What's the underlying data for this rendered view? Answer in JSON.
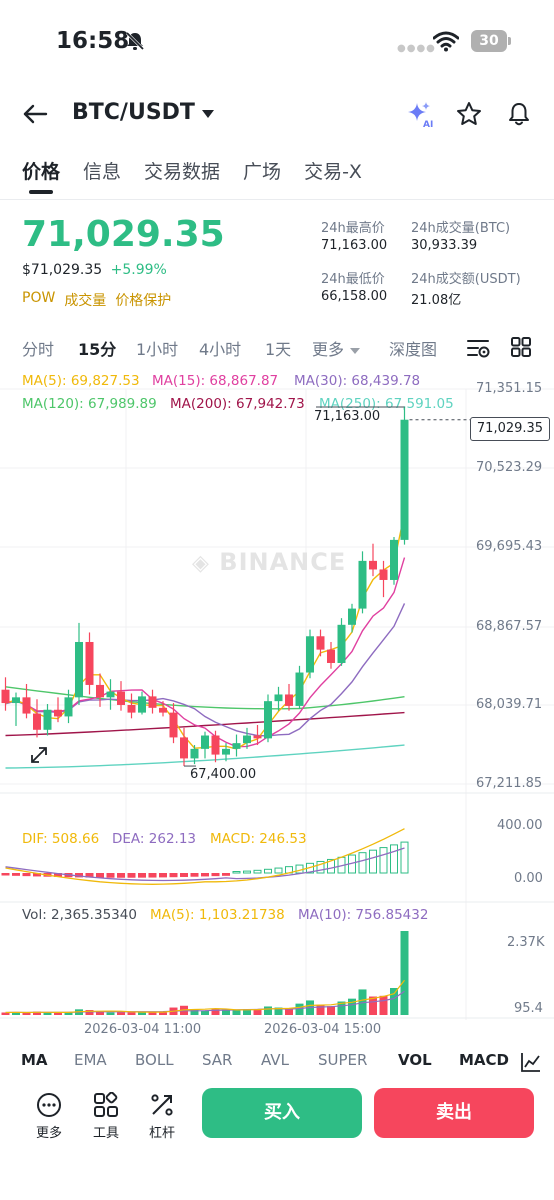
{
  "status_bar": {
    "time": "16:58",
    "battery": "30"
  },
  "header": {
    "pair": "BTC/USDT"
  },
  "tabs": [
    {
      "label": "价格"
    },
    {
      "label": "信息"
    },
    {
      "label": "交易数据"
    },
    {
      "label": "广场"
    },
    {
      "label": "交易-X"
    }
  ],
  "price": {
    "last": "71,029.35",
    "usd": "$71,029.35",
    "change": "+5.99%",
    "tags": [
      "POW",
      "成交量",
      "价格保护"
    ]
  },
  "stats": {
    "high_label": "24h最高价",
    "high_value": "71,163.00",
    "vol_btc_label": "24h成交量(BTC)",
    "vol_btc_value": "30,933.39",
    "low_label": "24h最低价",
    "low_value": "66,158.00",
    "vol_usdt_label": "24h成交额(USDT)",
    "vol_usdt_value": "21.08亿"
  },
  "intervals": {
    "items": [
      "分时",
      "15分",
      "1小时",
      "4小时",
      "1天",
      "更多",
      "深度图"
    ],
    "active": "15分"
  },
  "ma_legend": {
    "ma5": "MA(5): 69,827.53",
    "ma15": "MA(15): 68,867.87",
    "ma30": "MA(30): 68,439.78",
    "ma120": "MA(120): 67,989.89",
    "ma200": "MA(200): 67,942.73",
    "ma250": "MA(250): 67,591.05"
  },
  "macd_legend": {
    "dif": "DIF: 508.66",
    "dea": "DEA: 262.13",
    "macd": "MACD: 246.53"
  },
  "vol_legend": {
    "vol": "Vol: 2,365.35340",
    "ma5": "MA(5): 1,103.21738",
    "ma10": "MA(10): 756.85432"
  },
  "watermark": "BINANCE",
  "colors": {
    "up": "#2ebd85",
    "down": "#f6465d",
    "ma5": "#f0b90b",
    "ma15": "#e040a0",
    "ma30": "#8e6cc0",
    "ma120": "#4ec66a",
    "ma200": "#a0154a",
    "ma250": "#5fd3c0",
    "tag": "#c99400"
  },
  "chart_data": {
    "type": "candlestick",
    "price_axis": [
      "71,351.15",
      "70,523.29",
      "69,695.43",
      "68,867.57",
      "68,039.71",
      "67,211.85"
    ],
    "price_range": [
      67211.85,
      71351.15
    ],
    "macd_axis": [
      "400.00",
      "0.00"
    ],
    "volume_axis": [
      "2.37K",
      "95.4"
    ],
    "time_labels": [
      "2026-03-04 11:00",
      "2026-03-04 15:00"
    ],
    "current_price": "71,029.35",
    "high_marker": "71,163.00",
    "low_marker": "67,400.00",
    "candles": [
      {
        "o": 68200,
        "h": 68330,
        "l": 67980,
        "c": 68060
      },
      {
        "o": 68060,
        "h": 68170,
        "l": 67820,
        "c": 68120
      },
      {
        "o": 68120,
        "h": 68260,
        "l": 67900,
        "c": 67950
      },
      {
        "o": 67950,
        "h": 68100,
        "l": 67700,
        "c": 67780
      },
      {
        "o": 67780,
        "h": 68050,
        "l": 67720,
        "c": 67990
      },
      {
        "o": 67990,
        "h": 68120,
        "l": 67860,
        "c": 67920
      },
      {
        "o": 67920,
        "h": 68200,
        "l": 67850,
        "c": 68120
      },
      {
        "o": 68120,
        "h": 68900,
        "l": 68040,
        "c": 68700
      },
      {
        "o": 68700,
        "h": 68800,
        "l": 68150,
        "c": 68250
      },
      {
        "o": 68250,
        "h": 68370,
        "l": 68020,
        "c": 68120
      },
      {
        "o": 68120,
        "h": 68310,
        "l": 67990,
        "c": 68180
      },
      {
        "o": 68180,
        "h": 68290,
        "l": 67980,
        "c": 68040
      },
      {
        "o": 68040,
        "h": 68160,
        "l": 67900,
        "c": 67960
      },
      {
        "o": 67960,
        "h": 68180,
        "l": 67940,
        "c": 68130
      },
      {
        "o": 68130,
        "h": 68200,
        "l": 67950,
        "c": 68010
      },
      {
        "o": 68010,
        "h": 68080,
        "l": 67920,
        "c": 67960
      },
      {
        "o": 67960,
        "h": 68060,
        "l": 67640,
        "c": 67700
      },
      {
        "o": 67700,
        "h": 67800,
        "l": 67400,
        "c": 67480
      },
      {
        "o": 67480,
        "h": 67620,
        "l": 67420,
        "c": 67580
      },
      {
        "o": 67580,
        "h": 67760,
        "l": 67480,
        "c": 67720
      },
      {
        "o": 67720,
        "h": 67770,
        "l": 67440,
        "c": 67520
      },
      {
        "o": 67520,
        "h": 67640,
        "l": 67450,
        "c": 67580
      },
      {
        "o": 67580,
        "h": 67730,
        "l": 67500,
        "c": 67640
      },
      {
        "o": 67640,
        "h": 67800,
        "l": 67580,
        "c": 67720
      },
      {
        "o": 67720,
        "h": 67830,
        "l": 67620,
        "c": 67690
      },
      {
        "o": 67690,
        "h": 68150,
        "l": 67650,
        "c": 68080
      },
      {
        "o": 68080,
        "h": 68230,
        "l": 67980,
        "c": 68150
      },
      {
        "o": 68150,
        "h": 68260,
        "l": 67980,
        "c": 68030
      },
      {
        "o": 68030,
        "h": 68450,
        "l": 68000,
        "c": 68380
      },
      {
        "o": 68380,
        "h": 68830,
        "l": 68320,
        "c": 68760
      },
      {
        "o": 68760,
        "h": 68830,
        "l": 68550,
        "c": 68620
      },
      {
        "o": 68620,
        "h": 68700,
        "l": 68420,
        "c": 68480
      },
      {
        "o": 68480,
        "h": 68950,
        "l": 68450,
        "c": 68880
      },
      {
        "o": 68880,
        "h": 69100,
        "l": 68800,
        "c": 69050
      },
      {
        "o": 69050,
        "h": 69650,
        "l": 69000,
        "c": 69550
      },
      {
        "o": 69550,
        "h": 69730,
        "l": 69390,
        "c": 69460
      },
      {
        "o": 69460,
        "h": 69550,
        "l": 69170,
        "c": 69350
      },
      {
        "o": 69350,
        "h": 69800,
        "l": 69300,
        "c": 69770
      },
      {
        "o": 69770,
        "h": 71163,
        "l": 69720,
        "c": 71029.35
      }
    ],
    "volumes": [
      70,
      80,
      60,
      95,
      70,
      60,
      85,
      160,
      140,
      90,
      70,
      80,
      75,
      95,
      85,
      70,
      210,
      260,
      150,
      120,
      165,
      145,
      140,
      165,
      150,
      240,
      210,
      170,
      320,
      410,
      290,
      250,
      380,
      460,
      720,
      520,
      540,
      760,
      2365
    ]
  }
}
